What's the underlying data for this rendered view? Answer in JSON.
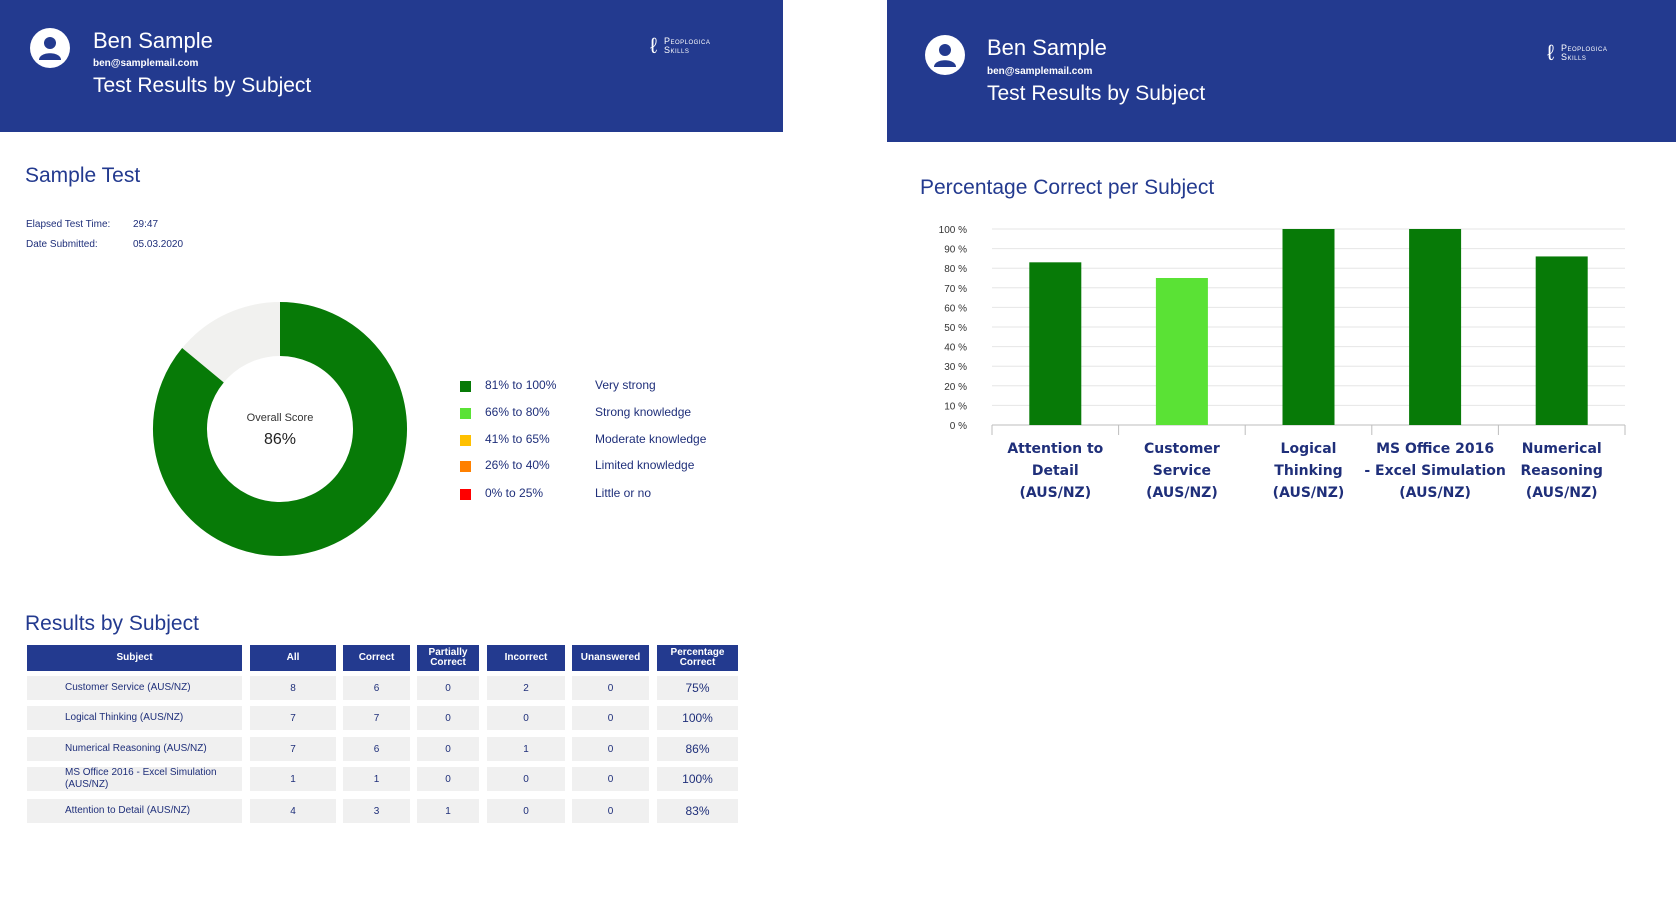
{
  "left": {
    "header": {
      "name": "Ben Sample",
      "email": "ben@samplemail.com",
      "title": "Test Results by Subject",
      "logo_line1": "Peoplogica",
      "logo_line2": "Skills"
    },
    "test_title": "Sample Test",
    "elapsed_label": "Elapsed Test Time:",
    "elapsed_value": "29:47",
    "date_label": "Date Submitted:",
    "date_value": "05.03.2020",
    "donut": {
      "center_label": "Overall Score",
      "center_value": "86%",
      "score_fraction": 0.86,
      "filled_color": "#077a07",
      "remaining_color": "#f1f1ef"
    },
    "legend": [
      {
        "range": "81% to 100%",
        "desc": "Very strong",
        "color": "#077a07"
      },
      {
        "range": "66% to 80%",
        "desc": "Strong knowledge",
        "color": "#5ae235"
      },
      {
        "range": "41% to 65%",
        "desc": "Moderate knowledge",
        "color": "#ffc000"
      },
      {
        "range": "26% to 40%",
        "desc": "Limited knowledge",
        "color": "#ff8000"
      },
      {
        "range": "0% to 25%",
        "desc": "Little or no",
        "color": "#ff0000"
      }
    ],
    "results_title": "Results by Subject",
    "table": {
      "headers": [
        "Subject",
        "All",
        "Correct",
        "Partially Correct",
        "Incorrect",
        "Unanswered",
        "Percentage Correct"
      ],
      "rows": [
        [
          "Customer Service (AUS/NZ)",
          "8",
          "6",
          "0",
          "2",
          "0",
          "75%"
        ],
        [
          "Logical Thinking (AUS/NZ)",
          "7",
          "7",
          "0",
          "0",
          "0",
          "100%"
        ],
        [
          "Numerical Reasoning (AUS/NZ)",
          "7",
          "6",
          "0",
          "1",
          "0",
          "86%"
        ],
        [
          "MS Office 2016 - Excel Simulation (AUS/NZ)",
          "1",
          "1",
          "0",
          "0",
          "0",
          "100%"
        ],
        [
          "Attention to Detail (AUS/NZ)",
          "4",
          "3",
          "1",
          "0",
          "0",
          "83%"
        ]
      ]
    }
  },
  "right": {
    "header": {
      "name": "Ben Sample",
      "email": "ben@samplemail.com",
      "title": "Test Results by Subject",
      "logo_line1": "Peoplogica",
      "logo_line2": "Skills"
    },
    "chart_title": "Percentage Correct per Subject"
  },
  "chart_data": {
    "type": "bar",
    "title": "Percentage Correct per Subject",
    "categories": [
      "Attention to Detail (AUS/NZ)",
      "Customer Service (AUS/NZ)",
      "Logical Thinking (AUS/NZ)",
      "MS Office 2016 - Excel Simulation (AUS/NZ)",
      "Numerical Reasoning (AUS/NZ)"
    ],
    "category_label_lines": [
      [
        "Attention to",
        "Detail",
        "(AUS/NZ)"
      ],
      [
        "Customer",
        "Service",
        "(AUS/NZ)"
      ],
      [
        "Logical",
        "Thinking",
        "(AUS/NZ)"
      ],
      [
        "MS Office 2016",
        "- Excel Simulation",
        "(AUS/NZ)"
      ],
      [
        "Numerical",
        "Reasoning",
        "(AUS/NZ)"
      ]
    ],
    "values": [
      83,
      75,
      100,
      100,
      86
    ],
    "bar_colors": [
      "#077a07",
      "#5ae235",
      "#077a07",
      "#077a07",
      "#077a07"
    ],
    "ylim": [
      0,
      100
    ],
    "yticks": [
      0,
      10,
      20,
      30,
      40,
      50,
      60,
      70,
      80,
      90,
      100
    ],
    "ytick_labels": [
      "0 %",
      "10 %",
      "20 %",
      "30 %",
      "40 %",
      "50 %",
      "60 %",
      "70 %",
      "80 %",
      "90 %",
      "100 %"
    ],
    "grid": true,
    "xlabel": "",
    "ylabel": ""
  }
}
